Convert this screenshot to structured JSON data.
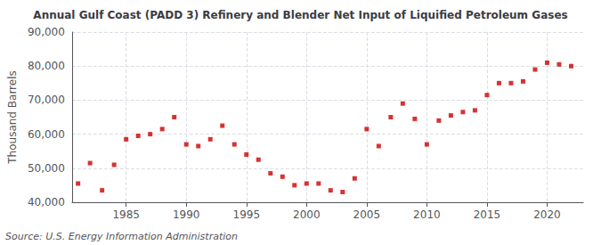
{
  "chart_data": {
    "type": "scatter",
    "title": "Annual Gulf Coast (PADD 3) Refinery and Blender Net Input of Liquified Petroleum Gases",
    "ylabel": "Thousand Barrels",
    "annotations": [
      "Source: U.S. Energy Information Administration"
    ],
    "x": [
      1981,
      1982,
      1983,
      1984,
      1985,
      1986,
      1987,
      1988,
      1989,
      1990,
      1991,
      1992,
      1993,
      1994,
      1995,
      1996,
      1997,
      1998,
      1999,
      2000,
      2001,
      2002,
      2003,
      2004,
      2005,
      2006,
      2007,
      2008,
      2009,
      2010,
      2011,
      2012,
      2013,
      2014,
      2015,
      2016,
      2017,
      2018,
      2019,
      2020,
      2021,
      2022
    ],
    "values": [
      45500,
      51500,
      43500,
      51000,
      58500,
      59500,
      60000,
      61500,
      65000,
      57000,
      56500,
      58500,
      62500,
      57000,
      54000,
      52500,
      48500,
      47500,
      45000,
      45500,
      45500,
      43500,
      43000,
      47000,
      61500,
      56500,
      65000,
      69000,
      64500,
      57000,
      64000,
      65500,
      66500,
      67000,
      71500,
      75000,
      75000,
      75500,
      79000,
      81000,
      80500,
      80000
    ],
    "color": "#cc0000",
    "marker": "square",
    "xlim": [
      1980.5,
      2023
    ],
    "xticks": [
      1985,
      1990,
      1995,
      2000,
      2005,
      2010,
      2015,
      2020
    ],
    "ylim": [
      40000,
      90000
    ],
    "yticks": [
      {
        "value": 40000,
        "label": "40,000"
      },
      {
        "value": 50000,
        "label": "50,000"
      },
      {
        "value": 60000,
        "label": "60,000"
      },
      {
        "value": 70000,
        "label": "70,000"
      },
      {
        "value": 80000,
        "label": "80,000"
      },
      {
        "value": 90000,
        "label": "90,000"
      }
    ],
    "grid": true
  }
}
